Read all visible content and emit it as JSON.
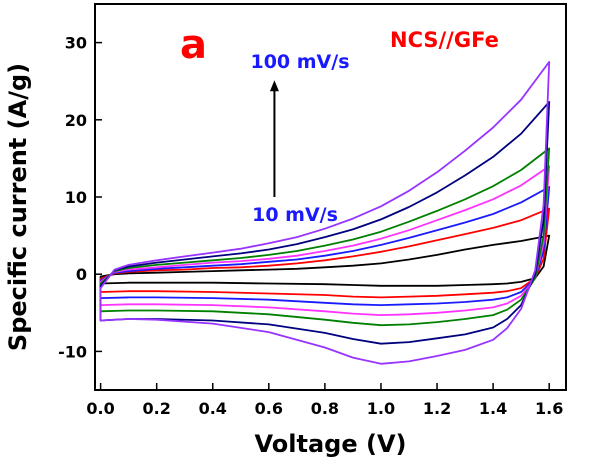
{
  "chart_data": {
    "type": "line",
    "panel_label": "a",
    "sample_label": "NCS//GFe",
    "xlabel": "Voltage (V)",
    "ylabel": "Specific current (A/g)",
    "xlim": [
      -0.02,
      1.66
    ],
    "ylim": [
      -15,
      35
    ],
    "xticks": [
      0.0,
      0.2,
      0.4,
      0.6,
      0.8,
      1.0,
      1.2,
      1.4,
      1.6
    ],
    "xtick_labels": [
      "0.0",
      "0.2",
      "0.4",
      "0.6",
      "0.8",
      "1.0",
      "1.2",
      "1.4",
      "1.6"
    ],
    "yticks": [
      -10,
      0,
      10,
      20,
      30
    ],
    "ytick_labels": [
      "-10",
      "0",
      "10",
      "20",
      "30"
    ],
    "grid": false,
    "annotations": {
      "rate_top": "100 mV/s",
      "rate_bottom": "10 mV/s",
      "arrow": {
        "from": [
          0.62,
          10.0
        ],
        "to": [
          0.62,
          25.0
        ]
      }
    },
    "series": [
      {
        "color": "#000000",
        "upper": [
          [
            0.0,
            -0.3
          ],
          [
            0.05,
            0.0
          ],
          [
            0.1,
            0.1
          ],
          [
            0.2,
            0.2
          ],
          [
            0.3,
            0.3
          ],
          [
            0.4,
            0.4
          ],
          [
            0.5,
            0.5
          ],
          [
            0.6,
            0.6
          ],
          [
            0.7,
            0.7
          ],
          [
            0.8,
            0.9
          ],
          [
            0.9,
            1.1
          ],
          [
            1.0,
            1.4
          ],
          [
            1.1,
            1.9
          ],
          [
            1.2,
            2.5
          ],
          [
            1.3,
            3.2
          ],
          [
            1.4,
            3.8
          ],
          [
            1.5,
            4.3
          ],
          [
            1.6,
            5.0
          ]
        ],
        "lower": [
          [
            1.6,
            5.0
          ],
          [
            1.58,
            1.0
          ],
          [
            1.55,
            -0.5
          ],
          [
            1.5,
            -1.0
          ],
          [
            1.45,
            -1.2
          ],
          [
            1.4,
            -1.3
          ],
          [
            1.3,
            -1.4
          ],
          [
            1.2,
            -1.5
          ],
          [
            1.1,
            -1.5
          ],
          [
            1.0,
            -1.5
          ],
          [
            0.9,
            -1.4
          ],
          [
            0.8,
            -1.3
          ],
          [
            0.6,
            -1.2
          ],
          [
            0.4,
            -1.1
          ],
          [
            0.2,
            -1.1
          ],
          [
            0.1,
            -1.1
          ],
          [
            0.0,
            -1.2
          ],
          [
            0.0,
            -0.3
          ]
        ]
      },
      {
        "color": "#ff0000",
        "upper": [
          [
            0.0,
            -0.6
          ],
          [
            0.05,
            0.1
          ],
          [
            0.1,
            0.3
          ],
          [
            0.2,
            0.5
          ],
          [
            0.3,
            0.6
          ],
          [
            0.4,
            0.8
          ],
          [
            0.5,
            0.9
          ],
          [
            0.6,
            1.1
          ],
          [
            0.7,
            1.4
          ],
          [
            0.8,
            1.8
          ],
          [
            0.9,
            2.3
          ],
          [
            1.0,
            2.9
          ],
          [
            1.1,
            3.6
          ],
          [
            1.2,
            4.4
          ],
          [
            1.3,
            5.2
          ],
          [
            1.4,
            6.0
          ],
          [
            1.5,
            7.0
          ],
          [
            1.6,
            8.5
          ]
        ],
        "lower": [
          [
            1.6,
            8.5
          ],
          [
            1.58,
            2.0
          ],
          [
            1.55,
            -0.5
          ],
          [
            1.5,
            -1.8
          ],
          [
            1.45,
            -2.2
          ],
          [
            1.4,
            -2.4
          ],
          [
            1.3,
            -2.6
          ],
          [
            1.2,
            -2.8
          ],
          [
            1.1,
            -2.9
          ],
          [
            1.0,
            -3.0
          ],
          [
            0.9,
            -2.9
          ],
          [
            0.8,
            -2.7
          ],
          [
            0.6,
            -2.5
          ],
          [
            0.4,
            -2.3
          ],
          [
            0.2,
            -2.2
          ],
          [
            0.1,
            -2.2
          ],
          [
            0.0,
            -2.3
          ],
          [
            0.0,
            -0.6
          ]
        ]
      },
      {
        "color": "#1a1aff",
        "upper": [
          [
            0.0,
            -0.8
          ],
          [
            0.05,
            0.2
          ],
          [
            0.1,
            0.4
          ],
          [
            0.2,
            0.7
          ],
          [
            0.3,
            0.9
          ],
          [
            0.4,
            1.1
          ],
          [
            0.5,
            1.3
          ],
          [
            0.6,
            1.6
          ],
          [
            0.7,
            1.9
          ],
          [
            0.8,
            2.4
          ],
          [
            0.9,
            3.0
          ],
          [
            1.0,
            3.8
          ],
          [
            1.1,
            4.7
          ],
          [
            1.2,
            5.7
          ],
          [
            1.3,
            6.7
          ],
          [
            1.4,
            7.8
          ],
          [
            1.5,
            9.3
          ],
          [
            1.6,
            11.3
          ]
        ],
        "lower": [
          [
            1.6,
            11.3
          ],
          [
            1.58,
            3.0
          ],
          [
            1.55,
            -0.5
          ],
          [
            1.5,
            -2.3
          ],
          [
            1.45,
            -3.0
          ],
          [
            1.4,
            -3.3
          ],
          [
            1.3,
            -3.6
          ],
          [
            1.2,
            -3.8
          ],
          [
            1.1,
            -3.9
          ],
          [
            1.0,
            -4.0
          ],
          [
            0.9,
            -3.9
          ],
          [
            0.8,
            -3.7
          ],
          [
            0.6,
            -3.3
          ],
          [
            0.4,
            -3.1
          ],
          [
            0.2,
            -3.0
          ],
          [
            0.1,
            -3.0
          ],
          [
            0.0,
            -3.1
          ],
          [
            0.0,
            -0.8
          ]
        ]
      },
      {
        "color": "#ff33ff",
        "upper": [
          [
            0.0,
            -1.0
          ],
          [
            0.05,
            0.3
          ],
          [
            0.1,
            0.6
          ],
          [
            0.2,
            0.9
          ],
          [
            0.3,
            1.2
          ],
          [
            0.4,
            1.5
          ],
          [
            0.5,
            1.7
          ],
          [
            0.6,
            2.0
          ],
          [
            0.7,
            2.4
          ],
          [
            0.8,
            3.0
          ],
          [
            0.9,
            3.7
          ],
          [
            1.0,
            4.6
          ],
          [
            1.1,
            5.7
          ],
          [
            1.2,
            7.0
          ],
          [
            1.3,
            8.3
          ],
          [
            1.4,
            9.7
          ],
          [
            1.5,
            11.5
          ],
          [
            1.6,
            14.0
          ]
        ],
        "lower": [
          [
            1.6,
            14.0
          ],
          [
            1.58,
            4.0
          ],
          [
            1.55,
            -0.5
          ],
          [
            1.5,
            -2.8
          ],
          [
            1.45,
            -3.8
          ],
          [
            1.4,
            -4.3
          ],
          [
            1.3,
            -4.7
          ],
          [
            1.2,
            -5.0
          ],
          [
            1.1,
            -5.2
          ],
          [
            1.0,
            -5.3
          ],
          [
            0.9,
            -5.1
          ],
          [
            0.8,
            -4.8
          ],
          [
            0.6,
            -4.3
          ],
          [
            0.4,
            -4.0
          ],
          [
            0.2,
            -3.9
          ],
          [
            0.1,
            -3.9
          ],
          [
            0.0,
            -4.0
          ],
          [
            0.0,
            -1.0
          ]
        ]
      },
      {
        "color": "#008000",
        "upper": [
          [
            0.0,
            -1.2
          ],
          [
            0.05,
            0.4
          ],
          [
            0.1,
            0.8
          ],
          [
            0.2,
            1.2
          ],
          [
            0.3,
            1.5
          ],
          [
            0.4,
            1.8
          ],
          [
            0.5,
            2.1
          ],
          [
            0.6,
            2.5
          ],
          [
            0.7,
            3.0
          ],
          [
            0.8,
            3.7
          ],
          [
            0.9,
            4.5
          ],
          [
            1.0,
            5.5
          ],
          [
            1.1,
            6.8
          ],
          [
            1.2,
            8.2
          ],
          [
            1.3,
            9.7
          ],
          [
            1.4,
            11.4
          ],
          [
            1.5,
            13.5
          ],
          [
            1.6,
            16.3
          ]
        ],
        "lower": [
          [
            1.6,
            16.3
          ],
          [
            1.58,
            5.0
          ],
          [
            1.55,
            -0.5
          ],
          [
            1.5,
            -3.3
          ],
          [
            1.45,
            -4.6
          ],
          [
            1.4,
            -5.3
          ],
          [
            1.3,
            -5.8
          ],
          [
            1.2,
            -6.2
          ],
          [
            1.1,
            -6.5
          ],
          [
            1.0,
            -6.6
          ],
          [
            0.9,
            -6.3
          ],
          [
            0.8,
            -5.9
          ],
          [
            0.6,
            -5.2
          ],
          [
            0.4,
            -4.8
          ],
          [
            0.2,
            -4.7
          ],
          [
            0.1,
            -4.7
          ],
          [
            0.0,
            -4.8
          ],
          [
            0.0,
            -1.2
          ]
        ]
      },
      {
        "color": "#00007f",
        "upper": [
          [
            0.0,
            -1.5
          ],
          [
            0.05,
            0.5
          ],
          [
            0.1,
            1.0
          ],
          [
            0.2,
            1.5
          ],
          [
            0.3,
            1.9
          ],
          [
            0.4,
            2.3
          ],
          [
            0.5,
            2.7
          ],
          [
            0.6,
            3.2
          ],
          [
            0.7,
            3.9
          ],
          [
            0.8,
            4.8
          ],
          [
            0.9,
            5.8
          ],
          [
            1.0,
            7.1
          ],
          [
            1.1,
            8.7
          ],
          [
            1.2,
            10.6
          ],
          [
            1.3,
            12.8
          ],
          [
            1.4,
            15.2
          ],
          [
            1.5,
            18.2
          ],
          [
            1.6,
            22.3
          ]
        ],
        "lower": [
          [
            1.6,
            22.3
          ],
          [
            1.58,
            7.0
          ],
          [
            1.55,
            0.0
          ],
          [
            1.5,
            -4.0
          ],
          [
            1.45,
            -5.8
          ],
          [
            1.4,
            -6.9
          ],
          [
            1.3,
            -7.8
          ],
          [
            1.2,
            -8.3
          ],
          [
            1.1,
            -8.8
          ],
          [
            1.0,
            -9.0
          ],
          [
            0.9,
            -8.4
          ],
          [
            0.8,
            -7.6
          ],
          [
            0.6,
            -6.5
          ],
          [
            0.4,
            -6.0
          ],
          [
            0.2,
            -5.8
          ],
          [
            0.1,
            -5.8
          ],
          [
            0.0,
            -6.0
          ],
          [
            0.0,
            -1.5
          ]
        ]
      },
      {
        "color": "#9933ff",
        "upper": [
          [
            0.0,
            -1.8
          ],
          [
            0.05,
            0.6
          ],
          [
            0.1,
            1.2
          ],
          [
            0.2,
            1.8
          ],
          [
            0.3,
            2.3
          ],
          [
            0.4,
            2.8
          ],
          [
            0.5,
            3.3
          ],
          [
            0.6,
            4.0
          ],
          [
            0.7,
            4.8
          ],
          [
            0.8,
            5.9
          ],
          [
            0.9,
            7.2
          ],
          [
            1.0,
            8.8
          ],
          [
            1.1,
            10.8
          ],
          [
            1.2,
            13.2
          ],
          [
            1.3,
            16.0
          ],
          [
            1.4,
            19.0
          ],
          [
            1.5,
            22.6
          ],
          [
            1.6,
            27.5
          ]
        ],
        "lower": [
          [
            1.6,
            27.5
          ],
          [
            1.58,
            9.0
          ],
          [
            1.55,
            0.5
          ],
          [
            1.5,
            -4.5
          ],
          [
            1.45,
            -7.0
          ],
          [
            1.4,
            -8.5
          ],
          [
            1.3,
            -9.8
          ],
          [
            1.2,
            -10.6
          ],
          [
            1.1,
            -11.3
          ],
          [
            1.0,
            -11.6
          ],
          [
            0.9,
            -10.8
          ],
          [
            0.8,
            -9.5
          ],
          [
            0.6,
            -7.5
          ],
          [
            0.4,
            -6.4
          ],
          [
            0.2,
            -5.9
          ],
          [
            0.1,
            -5.8
          ],
          [
            0.0,
            -6.0
          ],
          [
            0.0,
            -1.8
          ]
        ]
      }
    ]
  }
}
